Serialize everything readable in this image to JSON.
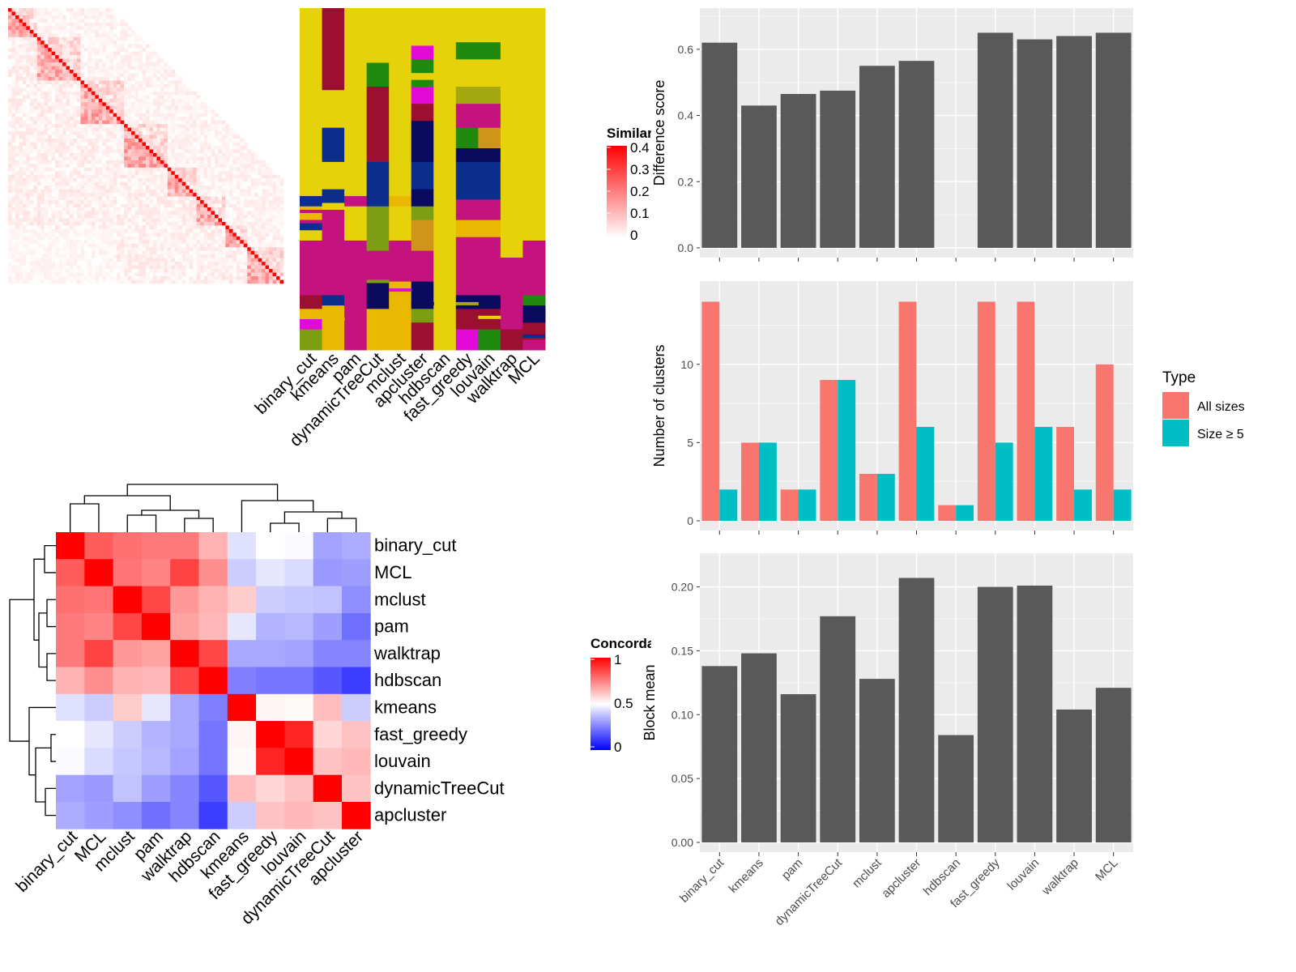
{
  "chart_data": [
    {
      "type": "heatmap",
      "name": "similarity-matrix",
      "legend_title": "Similarity",
      "legend_ticks": [
        "0.4",
        "0.3",
        "0.2",
        "0.1",
        "0"
      ],
      "colors": {
        "low": "#ffffff",
        "high": "#ff0000"
      }
    },
    {
      "type": "heatmap",
      "name": "cluster-membership",
      "columns": [
        "binary_cut",
        "kmeans",
        "pam",
        "dynamicTreeCut",
        "mclust",
        "apcluster",
        "hdbscan",
        "fast_greedy",
        "louvain",
        "walktrap",
        "MCL"
      ],
      "palette": [
        "#e6d20a",
        "#9b1030",
        "#0b2d8c",
        "#c4127e",
        "#eab800",
        "#1f8a0d",
        "#7d9e12",
        "#e20ad6",
        "#0a0a5e",
        "#d09418",
        "#a4a810"
      ]
    },
    {
      "type": "heatmap",
      "name": "concordance",
      "legend_title": "Concordance",
      "legend_ticks": [
        "1",
        "0.5",
        "0"
      ],
      "rows": [
        "binary_cut",
        "MCL",
        "mclust",
        "pam",
        "walktrap",
        "hdbscan",
        "kmeans",
        "fast_greedy",
        "louvain",
        "dynamicTreeCut",
        "apcluster"
      ],
      "columns": [
        "binary_cut",
        "MCL",
        "mclust",
        "pam",
        "walktrap",
        "hdbscan",
        "kmeans",
        "fast_greedy",
        "louvain",
        "dynamicTreeCut",
        "apcluster"
      ],
      "values": [
        [
          1.0,
          0.82,
          0.78,
          0.76,
          0.76,
          0.65,
          0.44,
          0.5,
          0.49,
          0.32,
          0.34
        ],
        [
          0.82,
          1.0,
          0.77,
          0.74,
          0.87,
          0.72,
          0.4,
          0.45,
          0.43,
          0.3,
          0.31
        ],
        [
          0.78,
          0.77,
          1.0,
          0.86,
          0.7,
          0.65,
          0.6,
          0.4,
          0.39,
          0.38,
          0.28
        ],
        [
          0.76,
          0.74,
          0.86,
          1.0,
          0.68,
          0.64,
          0.45,
          0.35,
          0.36,
          0.31,
          0.22
        ],
        [
          0.76,
          0.87,
          0.7,
          0.68,
          1.0,
          0.86,
          0.33,
          0.33,
          0.32,
          0.26,
          0.26
        ],
        [
          0.65,
          0.72,
          0.65,
          0.64,
          0.86,
          1.0,
          0.25,
          0.23,
          0.23,
          0.17,
          0.12
        ],
        [
          0.44,
          0.4,
          0.6,
          0.45,
          0.33,
          0.25,
          1.0,
          0.52,
          0.51,
          0.63,
          0.4
        ],
        [
          0.5,
          0.45,
          0.4,
          0.35,
          0.33,
          0.23,
          0.52,
          1.0,
          0.93,
          0.58,
          0.62
        ],
        [
          0.49,
          0.43,
          0.39,
          0.36,
          0.32,
          0.23,
          0.51,
          0.93,
          1.0,
          0.62,
          0.64
        ],
        [
          0.32,
          0.3,
          0.38,
          0.31,
          0.26,
          0.17,
          0.63,
          0.58,
          0.62,
          1.0,
          0.62
        ],
        [
          0.34,
          0.31,
          0.28,
          0.22,
          0.26,
          0.12,
          0.4,
          0.62,
          0.64,
          0.62,
          1.0
        ]
      ]
    },
    {
      "type": "bar",
      "name": "difference-score",
      "categories": [
        "binary_cut",
        "kmeans",
        "pam",
        "dynamicTreeCut",
        "mclust",
        "apcluster",
        "hdbscan",
        "fast_greedy",
        "louvain",
        "walktrap",
        "MCL"
      ],
      "values": [
        0.62,
        0.43,
        0.465,
        0.475,
        0.55,
        0.565,
        null,
        0.65,
        0.63,
        0.64,
        0.65
      ],
      "ylabel": "Difference score",
      "ylim": [
        0,
        0.7
      ],
      "yticks": [
        "0.0",
        "0.2",
        "0.4",
        "0.6"
      ],
      "bar_color": "#595959",
      "grid": true
    },
    {
      "type": "bar",
      "name": "number-of-clusters",
      "categories": [
        "binary_cut",
        "kmeans",
        "pam",
        "dynamicTreeCut",
        "mclust",
        "apcluster",
        "hdbscan",
        "fast_greedy",
        "louvain",
        "walktrap",
        "MCL"
      ],
      "series": [
        {
          "name": "All sizes",
          "color": "#f8766d",
          "values": [
            14,
            5,
            2,
            9,
            3,
            14,
            1,
            14,
            14,
            6,
            10
          ]
        },
        {
          "name": "Size ≥ 5",
          "color": "#00bfc4",
          "values": [
            2,
            5,
            2,
            9,
            3,
            6,
            1,
            5,
            6,
            2,
            2
          ]
        }
      ],
      "ylabel": "Number of clusters",
      "ylim": [
        0,
        14.8
      ],
      "yticks": [
        "0",
        "5",
        "10"
      ],
      "legend_title": "Type",
      "legend_position": "right",
      "grid": true
    },
    {
      "type": "bar",
      "name": "block-mean",
      "categories": [
        "binary_cut",
        "kmeans",
        "pam",
        "dynamicTreeCut",
        "mclust",
        "apcluster",
        "hdbscan",
        "fast_greedy",
        "louvain",
        "walktrap",
        "MCL"
      ],
      "values": [
        0.138,
        0.148,
        0.116,
        0.177,
        0.128,
        0.207,
        0.084,
        0.2,
        0.201,
        0.104,
        0.121
      ],
      "ylabel": "Block mean",
      "ylim": [
        0,
        0.22
      ],
      "yticks": [
        "0.00",
        "0.05",
        "0.10",
        "0.15",
        "0.20"
      ],
      "bar_color": "#595959",
      "grid": true
    }
  ]
}
